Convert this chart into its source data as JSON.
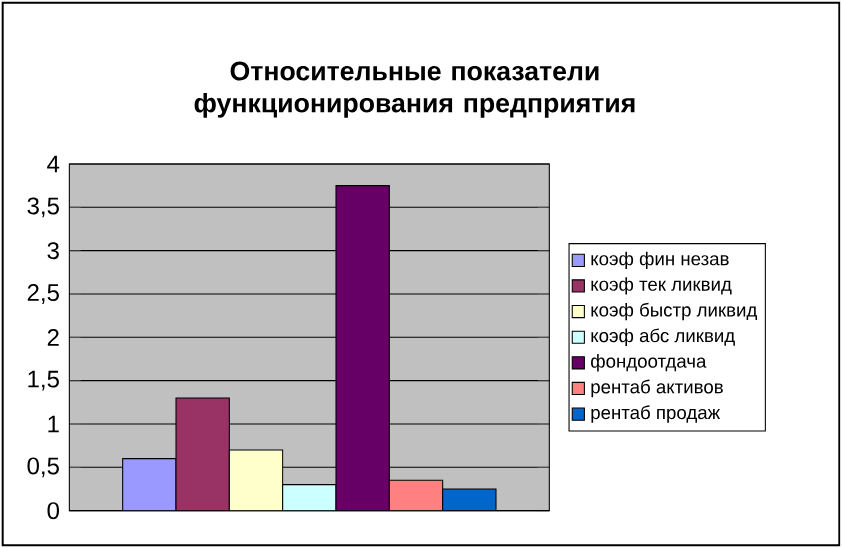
{
  "chart_data": {
    "type": "bar",
    "title": "Относительные показатели функционирования предприятия",
    "categories": [
      null
    ],
    "series": [
      {
        "name": "коэф фин незав",
        "color": "#9999ff",
        "values": [
          0.6
        ]
      },
      {
        "name": "коэф тек ликвид",
        "color": "#993366",
        "values": [
          1.3
        ]
      },
      {
        "name": "коэф быстр ликвид",
        "color": "#ffffcc",
        "values": [
          0.7
        ]
      },
      {
        "name": "коэф абс ликвид",
        "color": "#ccffff",
        "values": [
          0.3
        ]
      },
      {
        "name": "фондоотдача",
        "color": "#660066",
        "values": [
          3.75
        ]
      },
      {
        "name": "рентаб активов",
        "color": "#ff8080",
        "values": [
          0.35
        ]
      },
      {
        "name": "рентаб продаж",
        "color": "#0066cc",
        "values": [
          0.25
        ]
      }
    ],
    "ylim": [
      0,
      4
    ],
    "yticks": [
      {
        "value": 0,
        "label": "0"
      },
      {
        "value": 0.5,
        "label": "0,5"
      },
      {
        "value": 1,
        "label": "1"
      },
      {
        "value": 1.5,
        "label": "1,5"
      },
      {
        "value": 2,
        "label": "2"
      },
      {
        "value": 2.5,
        "label": "2,5"
      },
      {
        "value": 3,
        "label": "3"
      },
      {
        "value": 3.5,
        "label": "3,5"
      },
      {
        "value": 4,
        "label": "4"
      }
    ],
    "grid": "y",
    "legend": "right"
  }
}
